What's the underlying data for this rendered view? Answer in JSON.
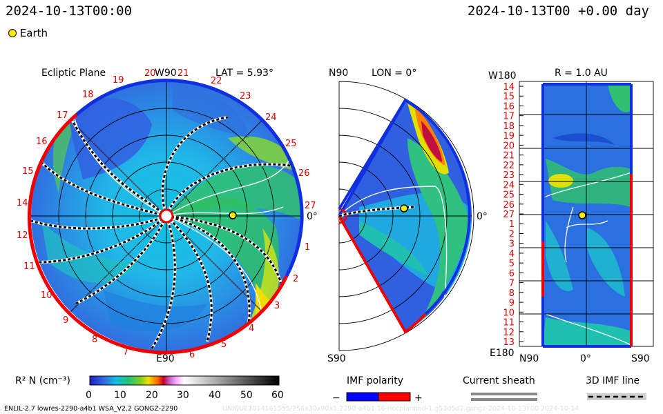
{
  "header": {
    "datetime": "2024-10-13T00:00",
    "datetime_right": "2024-10-13T00 +0.00 day",
    "legend_earth": "Earth"
  },
  "ecliptic": {
    "title": "Ecliptic Plane",
    "lat": "LAT = 5.93°",
    "top_label": "W90",
    "bottom_label": "E90",
    "right_label": "0°",
    "carrington_labels": [
      "14",
      "15",
      "16",
      "17",
      "18",
      "19",
      "20",
      "21",
      "22",
      "23",
      "24",
      "25",
      "26",
      "27",
      "1",
      "2",
      "3",
      "4",
      "5",
      "6",
      "7",
      "8",
      "9",
      "10",
      "11",
      "12",
      "13"
    ]
  },
  "meridional": {
    "top": "N90",
    "lon": "LON = 0°",
    "bottom": "S90",
    "right": "0°"
  },
  "sphere": {
    "title": "R = 1.0 AU",
    "top_left": "W180",
    "bottom_left": "E180",
    "x_labels": [
      "N90",
      "0°",
      "S90"
    ],
    "rows": [
      "14",
      "15",
      "16",
      "17",
      "18",
      "19",
      "20",
      "21",
      "22",
      "23",
      "24",
      "25",
      "26",
      "27",
      "1",
      "2",
      "3",
      "4",
      "5",
      "6",
      "7",
      "8",
      "9",
      "10",
      "11",
      "12",
      "13"
    ]
  },
  "colorbar": {
    "label": "R² N (cm⁻³)",
    "ticks": [
      "0",
      "10",
      "20",
      "30",
      "40",
      "50",
      "60"
    ]
  },
  "imf": {
    "title": "IMF polarity",
    "minus": "−",
    "plus": "+",
    "neg_color": "#0000ff",
    "pos_color": "#ff0000"
  },
  "sheath": {
    "title": "Current sheath"
  },
  "imfline": {
    "title": "3D IMF line"
  },
  "footer": {
    "left": "ENLIL-2.7 lowres-2290-a4b1 WSA_V2.2 GONGZ-2290",
    "right": "UNIQUE1014161555/256x30x90x1.2290-a4b1.16-nocplanned-1.g53d5d2.gongz-2024-10-13T00     2024-10-14"
  }
}
